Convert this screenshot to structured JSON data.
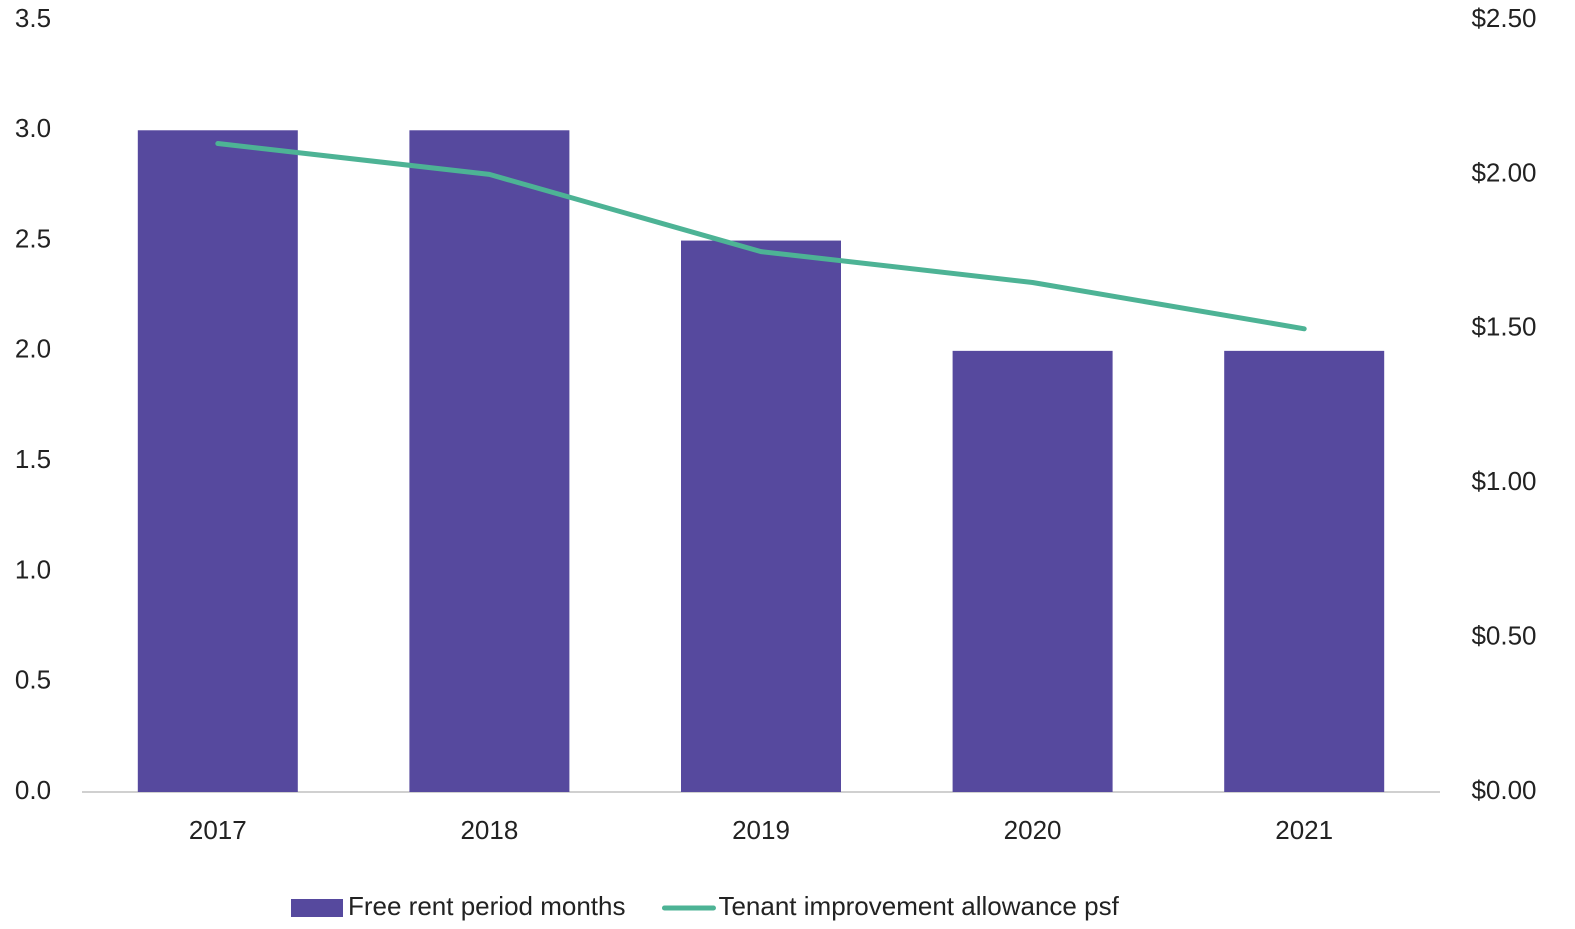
{
  "chart_data": {
    "type": "bar_line",
    "categories": [
      "2017",
      "2018",
      "2019",
      "2020",
      "2021"
    ],
    "series": [
      {
        "name": "Free rent period months",
        "type": "bar",
        "color": "#56499e",
        "values": [
          3.0,
          3.0,
          2.5,
          2.0,
          2.0
        ]
      },
      {
        "name": "Tenant improvement allowance psf",
        "type": "line",
        "color": "#4db395",
        "axis": "y2",
        "values": [
          2.1,
          2.0,
          1.75,
          1.65,
          1.5
        ]
      }
    ],
    "ylim": [
      0,
      3.5
    ],
    "yticks": [
      {
        "value": 0,
        "label": "0.0"
      },
      {
        "value": 0.5,
        "label": "0.5"
      },
      {
        "value": 1,
        "label": "1.0"
      },
      {
        "value": 1.5,
        "label": "1.5"
      },
      {
        "value": 2,
        "label": "2.0"
      },
      {
        "value": 2.5,
        "label": "2.5"
      },
      {
        "value": 3,
        "label": "3.0"
      },
      {
        "value": 3.5,
        "label": "3.5"
      }
    ],
    "y2lim": [
      0,
      2.5
    ],
    "y2ticks": [
      {
        "value": 0,
        "label": "$0.00"
      },
      {
        "value": 0.5,
        "label": "$0.50"
      },
      {
        "value": 1,
        "label": "$1.00"
      },
      {
        "value": 1.5,
        "label": "$1.50"
      },
      {
        "value": 2,
        "label": "$2.00"
      },
      {
        "value": 2.5,
        "label": "$2.50"
      }
    ],
    "grid": false,
    "legend": "bottom"
  }
}
